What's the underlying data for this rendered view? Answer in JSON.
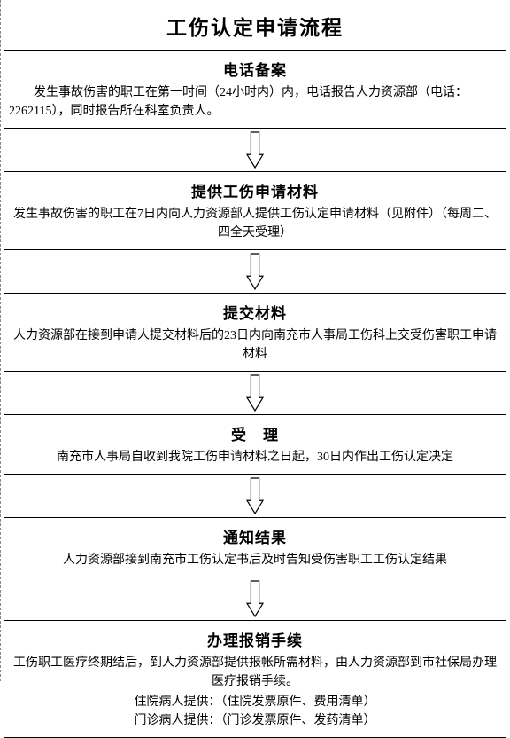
{
  "title": "工伤认定申请流程",
  "arrow": {
    "stroke": "#000000",
    "fill": "#ffffff",
    "width": 22,
    "height": 44
  },
  "steps": [
    {
      "title": "电话备案",
      "body": "发生事故伤害的职工在第一时间（24小时内）内，电话报告人力资源部（电话：2262115），同时报告所在科室负责人。",
      "align": "left",
      "indent": true
    },
    {
      "title": "提供工伤申请材料",
      "body": "发生事故伤害的职工在7日内向人力资源部人提供工伤认定申请材料（见附件）（每周二、四全天受理）",
      "align": "center",
      "indent": false
    },
    {
      "title": "提交材料",
      "body": "人力资源部在接到申请人提交材料后的23日内向南充市人事局工伤科上交受伤害职工申请材料",
      "align": "center",
      "indent": false
    },
    {
      "title": "受　理",
      "body": "南充市人事局自收到我院工伤申请材料之日起，30日内作出工伤认定决定",
      "align": "center",
      "indent": false
    },
    {
      "title": "通知结果",
      "body": "人力资源部接到南充市工伤认定书后及时告知受伤害职工工伤认定结果",
      "align": "center",
      "indent": false
    },
    {
      "title": "办理报销手续",
      "body": "工伤职工医疗终期结后，到人力资源部提供报帐所需材料，由人力资源部到市社保局办理医疗报销手续。",
      "align": "center",
      "indent": false,
      "extra": [
        "住院病人提供：（住院发票原件、费用清单）",
        "门诊病人提供：（门诊发票原件、发药清单）"
      ]
    }
  ]
}
